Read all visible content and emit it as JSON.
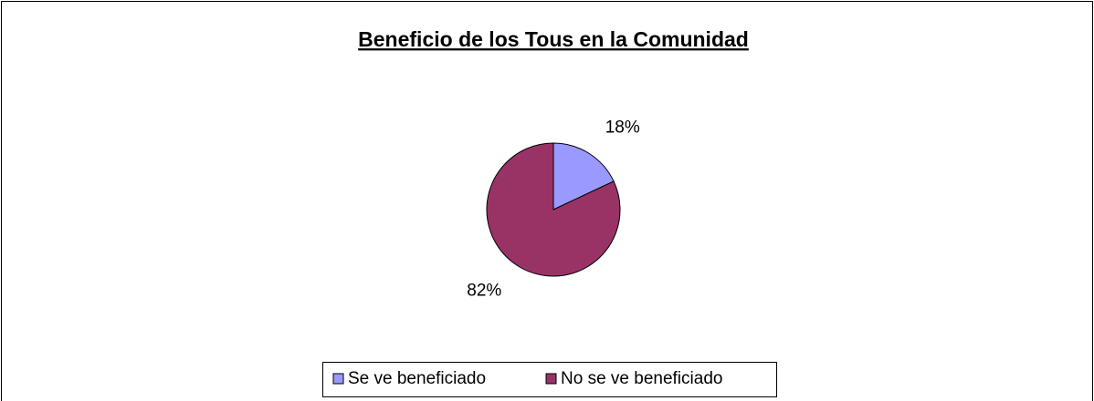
{
  "chart_data": {
    "type": "pie",
    "title": "Beneficio de los Tous en la Comunidad",
    "categories": [
      "Se ve beneficiado",
      "No se ve beneficiado"
    ],
    "values": [
      18,
      82
    ],
    "value_labels": [
      "18%",
      "82%"
    ],
    "colors": [
      "#9999ff",
      "#993366"
    ],
    "legend": "bottom"
  }
}
